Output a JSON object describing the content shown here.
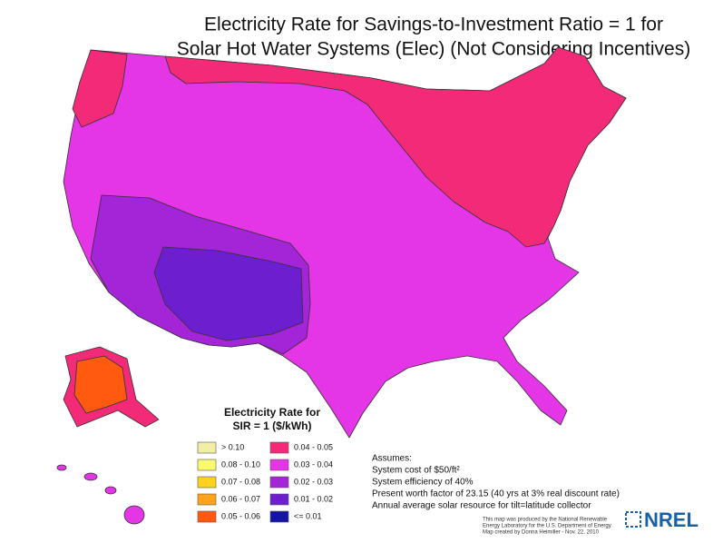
{
  "title": [
    "Electricity Rate for Savings-to-Investment Ratio = 1 for",
    "Solar Hot Water Systems (Elec) (Not Considering Incentives)"
  ],
  "legend": {
    "title": [
      "Electricity Rate for",
      "SIR = 1  ($/kWh)"
    ],
    "items": [
      {
        "label": "> 0.10",
        "color": "#f3eea6"
      },
      {
        "label": "0.08 - 0.10",
        "color": "#fbfa6e"
      },
      {
        "label": "0.07 - 0.08",
        "color": "#ffd21e"
      },
      {
        "label": "0.06 - 0.07",
        "color": "#ffa31a"
      },
      {
        "label": "0.05 - 0.06",
        "color": "#ff5a10"
      },
      {
        "label": "0.04 - 0.05",
        "color": "#f22a78"
      },
      {
        "label": "0.03 - 0.04",
        "color": "#e435e6"
      },
      {
        "label": "0.02 - 0.03",
        "color": "#a424d8"
      },
      {
        "label": "0.01 - 0.02",
        "color": "#6d1fd0"
      },
      {
        "label": "<= 0.01",
        "color": "#1414a6"
      }
    ]
  },
  "assumptions": [
    "Assumes:",
    "System cost of $50/ft²",
    "System efficiency of 40%",
    "Present worth factor of 23.15 (40 yrs at 3% real discount rate)",
    "Annual average solar resource for tilt=latitude collector"
  ],
  "credits": [
    "This map was produced by the National Renewable",
    "Energy Laboratory for the U.S. Department of Energy",
    "Map created by Donna Heimiller - Nov. 22, 2010"
  ],
  "logo": "NREL"
}
